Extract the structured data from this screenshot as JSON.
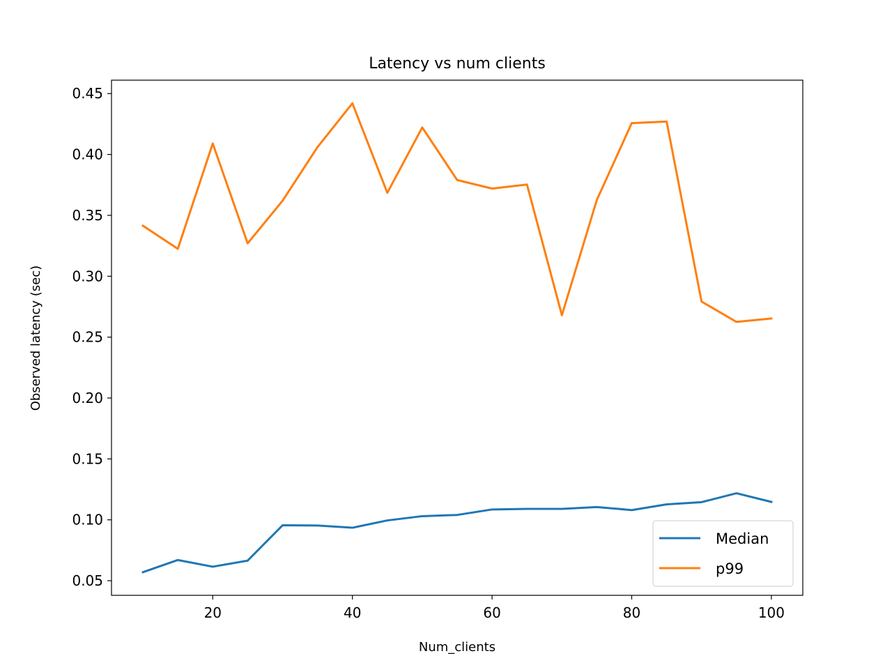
{
  "chart_data": {
    "type": "line",
    "title": "Latency vs num clients",
    "xlabel": "Num_clients",
    "ylabel": "Observed latency (sec)",
    "xlim": [
      5.5,
      104.5
    ],
    "ylim": [
      0.038,
      0.461
    ],
    "x_ticks": [
      20,
      40,
      60,
      80,
      100
    ],
    "y_ticks": [
      0.05,
      0.1,
      0.15,
      0.2,
      0.25,
      0.3,
      0.35,
      0.4,
      0.45
    ],
    "x_tick_labels": [
      "20",
      "40",
      "60",
      "80",
      "100"
    ],
    "y_tick_labels": [
      "0.05",
      "0.10",
      "0.15",
      "0.20",
      "0.25",
      "0.30",
      "0.35",
      "0.40",
      "0.45"
    ],
    "grid": false,
    "legend_position": "lower-right",
    "x": [
      10,
      15,
      20,
      25,
      30,
      35,
      40,
      45,
      50,
      55,
      60,
      65,
      70,
      75,
      80,
      85,
      90,
      95,
      100
    ],
    "series": [
      {
        "name": "Median",
        "color": "#1f77b4",
        "values": [
          0.057,
          0.067,
          0.0615,
          0.0665,
          0.0955,
          0.0953,
          0.0935,
          0.0995,
          0.103,
          0.104,
          0.1085,
          0.109,
          0.109,
          0.1105,
          0.108,
          0.1127,
          0.1145,
          0.1218,
          0.1147
        ]
      },
      {
        "name": "p99",
        "color": "#ff7f0e",
        "values": [
          0.3415,
          0.3225,
          0.409,
          0.327,
          0.362,
          0.406,
          0.442,
          0.3685,
          0.4222,
          0.379,
          0.372,
          0.3753,
          0.268,
          0.3626,
          0.4257,
          0.427,
          0.2792,
          0.2625,
          0.2653
        ]
      }
    ]
  }
}
